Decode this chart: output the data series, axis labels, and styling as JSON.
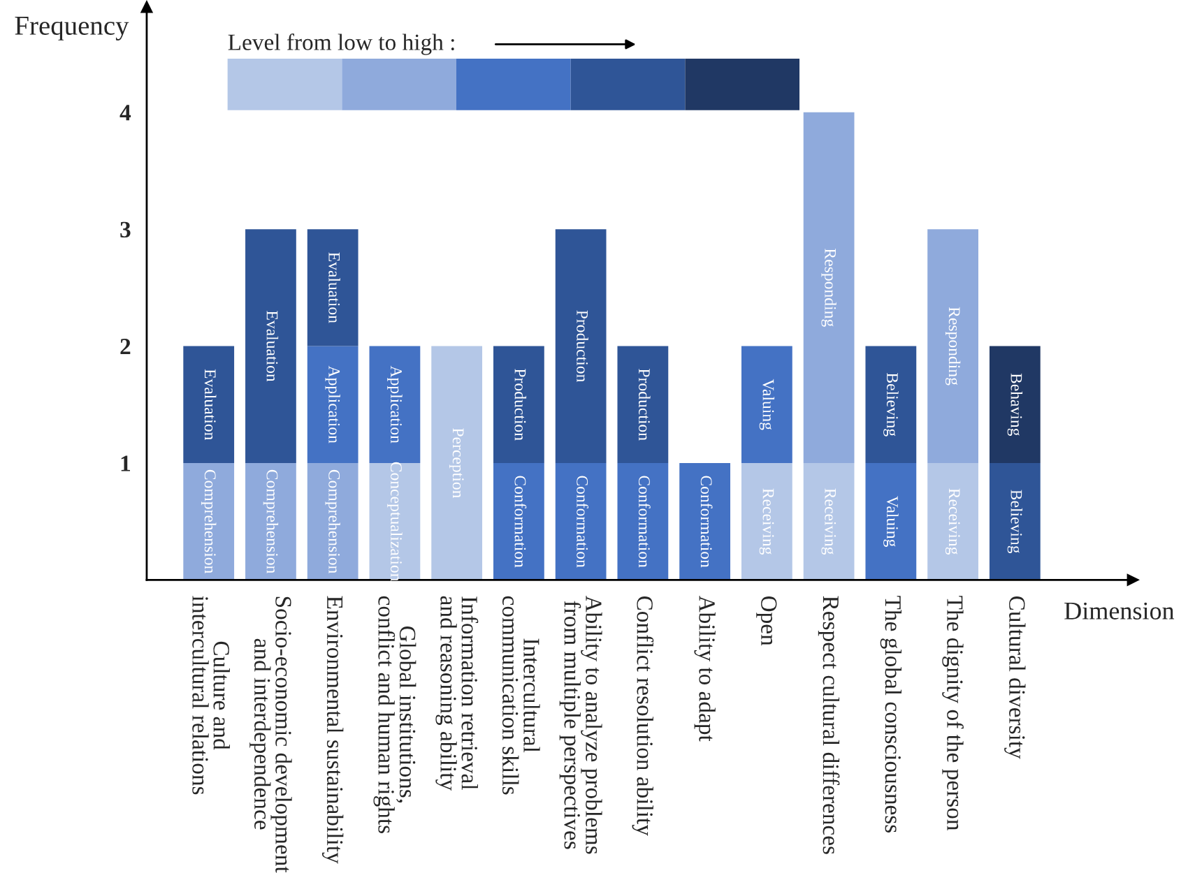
{
  "chart_data": {
    "type": "bar",
    "stacked": true,
    "xlabel": "Dimension",
    "ylabel": "Frequency",
    "legend_title": "Level from low to high :",
    "categories": [
      "Culture and\nintercultural relations",
      "Socio-economic development\nand interdependence",
      "Environmental sustainability",
      "Global institutions,\nconflict and human rights",
      "Information retrieval\nand reasoning ability",
      "Intercultural\ncommunication skills",
      "Ability to analyze problems\nfrom multiple perspectives",
      "Conflict resolution ability",
      "Ability to adapt",
      "Open",
      "Respect cultural differences",
      "The global consciousness",
      "The dignity of the person",
      "Cultural diversity"
    ],
    "ylim": [
      0,
      4.9
    ],
    "yticks": [
      1,
      2,
      3,
      4
    ],
    "series": [
      {
        "values": [
          1,
          1,
          1,
          1,
          2,
          1,
          1,
          1,
          1,
          1,
          1,
          1,
          1,
          1
        ],
        "colors": [
          "#8faadc",
          "#8faadc",
          "#8faadc",
          "#b4c7e7",
          "#b4c7e7",
          "#4472c4",
          "#4472c4",
          "#4472c4",
          "#4472c4",
          "#b4c7e7",
          "#b4c7e7",
          "#4472c4",
          "#b4c7e7",
          "#2f5597"
        ],
        "value_labels": [
          "Comprehension",
          "Comprehension",
          "Comprehension",
          "Conceptualization",
          "Perception",
          "Conformation",
          "Conformation",
          "Conformation",
          "Conformation",
          "Receiving",
          "Receiving",
          "Valuing",
          "Receiving",
          "Believing"
        ]
      },
      {
        "values": [
          1,
          2,
          1,
          1,
          null,
          1,
          2,
          1,
          null,
          1,
          3,
          1,
          2,
          1
        ],
        "colors": [
          "#2f5597",
          "#2f5597",
          "#4472c4",
          "#4472c4",
          null,
          "#2f5597",
          "#2f5597",
          "#2f5597",
          null,
          "#4472c4",
          "#8faadc",
          "#2f5597",
          "#8faadc",
          "#203864"
        ],
        "value_labels": [
          "Evaluation",
          "Evaluation",
          "Application",
          "Application",
          null,
          "Production",
          "Production",
          "Production",
          null,
          "Valuing",
          "Responding",
          "Believing",
          "Responding",
          "Behaving"
        ]
      },
      {
        "values": [
          null,
          null,
          1,
          null,
          null,
          null,
          null,
          null,
          null,
          null,
          null,
          null,
          null,
          null
        ],
        "colors": [
          null,
          null,
          "#2f5597",
          null,
          null,
          null,
          null,
          null,
          null,
          null,
          null,
          null,
          null,
          null
        ],
        "value_labels": [
          null,
          null,
          "Evaluation",
          null,
          null,
          null,
          null,
          null,
          null,
          null,
          null,
          null,
          null,
          null
        ]
      }
    ]
  }
}
